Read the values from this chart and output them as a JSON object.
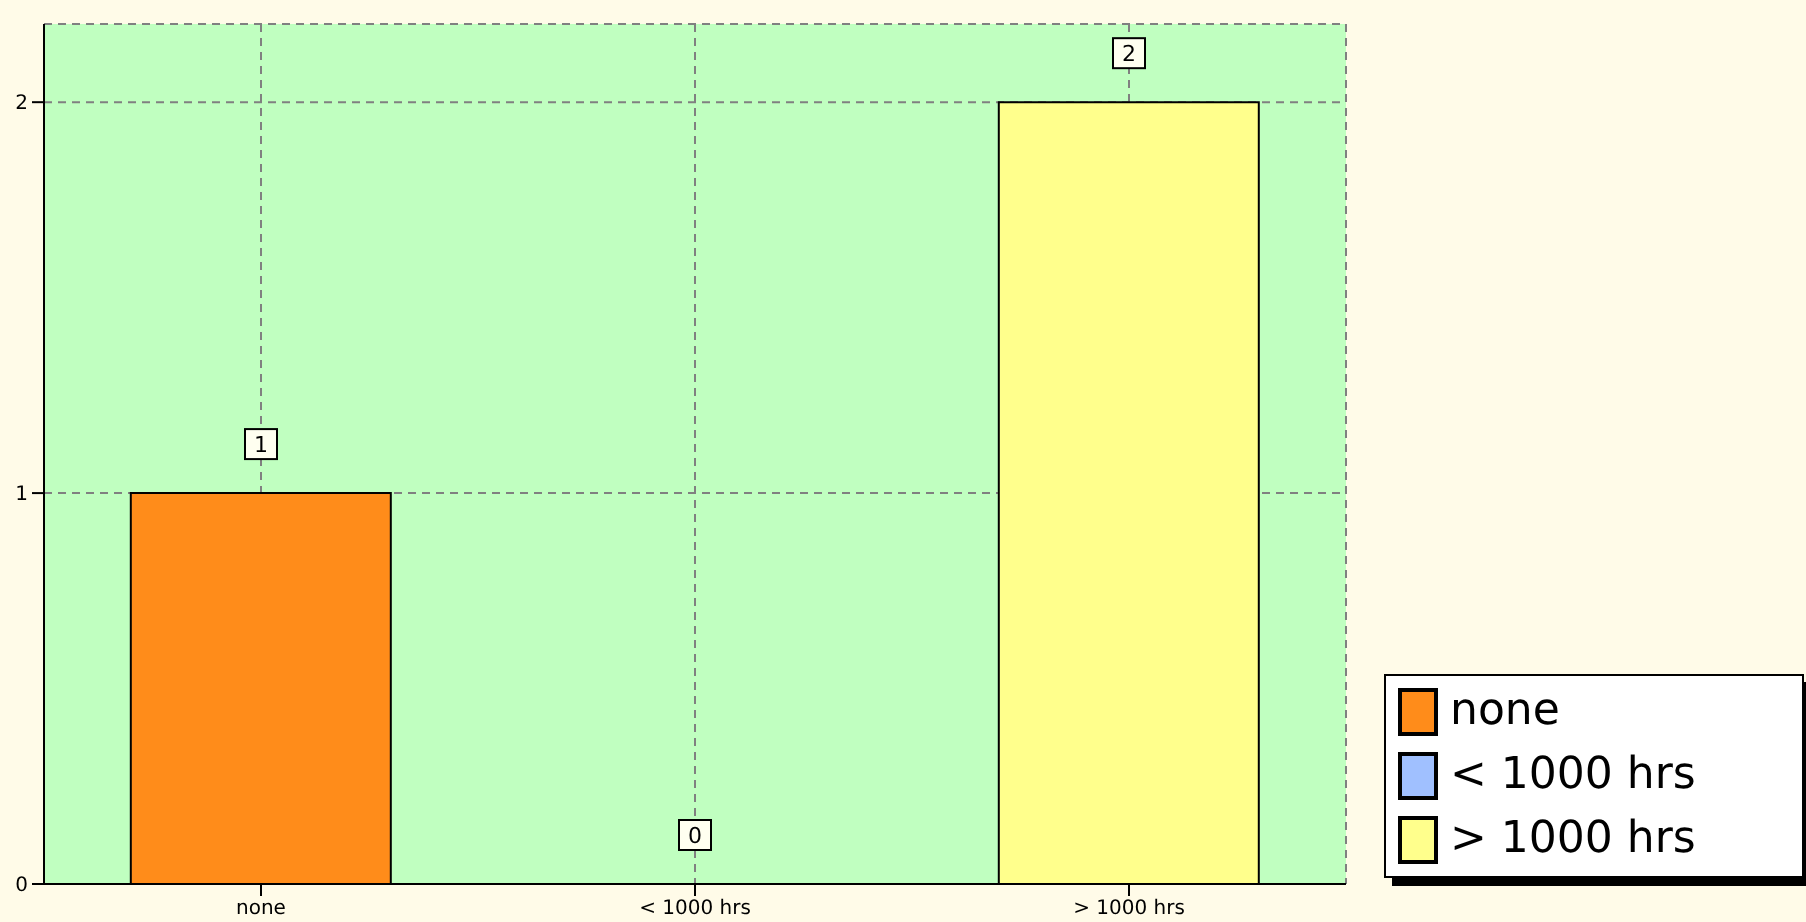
{
  "chart_data": {
    "type": "bar",
    "categories": [
      "none",
      "< 1000 hrs",
      "> 1000 hrs"
    ],
    "series": [
      {
        "name": "none",
        "color": "#ff8c1a",
        "values": [
          1,
          null,
          null
        ]
      },
      {
        "name": "< 1000 hrs",
        "color": "#a0c0ff",
        "values": [
          null,
          0,
          null
        ]
      },
      {
        "name": "> 1000 hrs",
        "color": "#ffff8c",
        "values": [
          null,
          null,
          2
        ]
      }
    ],
    "stacked": true,
    "ylim": [
      0,
      2.2
    ],
    "yticks": [
      0,
      1,
      2
    ],
    "grid": true,
    "legend": "bottom right",
    "data_labels": true
  }
}
